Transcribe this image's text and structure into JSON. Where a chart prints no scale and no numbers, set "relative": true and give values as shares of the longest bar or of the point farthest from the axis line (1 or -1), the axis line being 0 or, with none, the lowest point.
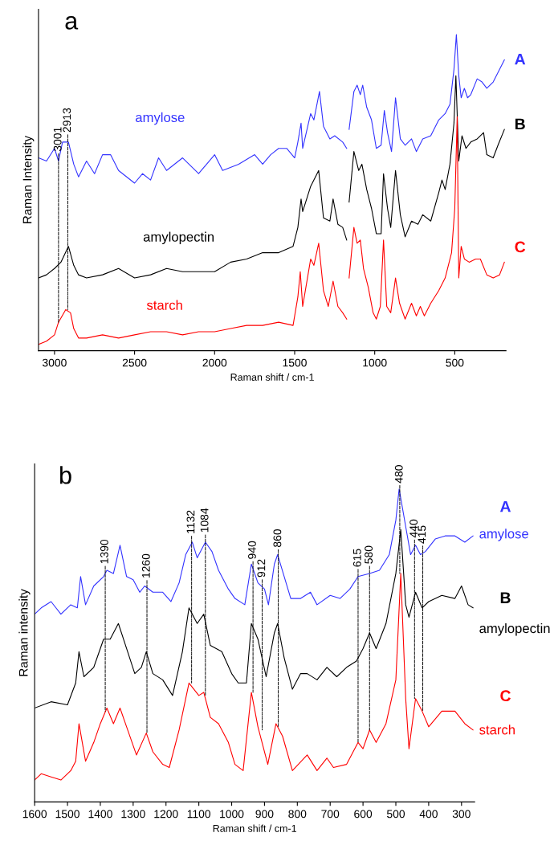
{
  "chart_data": [
    {
      "type": "line",
      "relative": true,
      "xlabel": "Raman shift / cm-1",
      "ylabel": "Raman Intensity",
      "xlim": [
        3100,
        180
      ],
      "xticks": [
        3000,
        2500,
        2000,
        1500,
        1000,
        500
      ],
      "grid": false,
      "legend": false,
      "series": [
        {
          "name": "amylose",
          "color": "#3333ff",
          "x": [
            3100,
            3050,
            3000,
            2975,
            2950,
            2913,
            2880,
            2850,
            2800,
            2750,
            2700,
            2650,
            2600,
            2500,
            2450,
            2400,
            2350,
            2300,
            2200,
            2100,
            2000,
            1950,
            1850,
            1750,
            1700,
            1650,
            1600,
            1550,
            1500,
            1480,
            1460,
            1450,
            1400,
            1380,
            1345,
            1320,
            1280,
            1250,
            1200,
            1175,
            1170,
            1160,
            1130,
            1110,
            1090,
            1075,
            1050,
            1020,
            990,
            960,
            940,
            920,
            895,
            870,
            840,
            810,
            770,
            740,
            700,
            650,
            600,
            560,
            530,
            505,
            490,
            475,
            460,
            440,
            420,
            400,
            360,
            330,
            300,
            260,
            230,
            190
          ],
          "values": [
            0.61,
            0.6,
            0.64,
            0.6,
            0.66,
            0.66,
            0.59,
            0.55,
            0.6,
            0.56,
            0.62,
            0.62,
            0.57,
            0.53,
            0.56,
            0.54,
            0.61,
            0.57,
            0.61,
            0.56,
            0.62,
            0.57,
            0.59,
            0.62,
            0.59,
            0.62,
            0.64,
            0.64,
            0.61,
            0.66,
            0.72,
            0.64,
            0.75,
            0.73,
            0.82,
            0.71,
            0.67,
            0.68,
            0.66,
            0.64,
            null,
            0.7,
            0.82,
            0.84,
            0.81,
            0.84,
            0.77,
            0.73,
            0.64,
            0.65,
            0.76,
            0.69,
            0.63,
            0.8,
            0.67,
            0.65,
            0.67,
            0.63,
            0.67,
            0.68,
            0.73,
            0.75,
            0.78,
            0.89,
            1.0,
            0.87,
            0.8,
            0.83,
            0.8,
            0.81,
            0.86,
            0.85,
            0.83,
            0.85,
            0.88,
            0.92
          ]
        },
        {
          "name": "amylopectin",
          "color": "#000000",
          "x": [
            3100,
            3050,
            3000,
            2960,
            2913,
            2880,
            2850,
            2800,
            2700,
            2600,
            2500,
            2400,
            2300,
            2200,
            2100,
            2000,
            1900,
            1800,
            1700,
            1600,
            1510,
            1480,
            1460,
            1450,
            1400,
            1350,
            1320,
            1280,
            1260,
            1230,
            1200,
            1175,
            1170,
            1160,
            1130,
            1100,
            1080,
            1050,
            1020,
            990,
            960,
            945,
            920,
            900,
            870,
            840,
            810,
            770,
            730,
            700,
            650,
            600,
            580,
            560,
            530,
            505,
            493,
            475,
            455,
            430,
            400,
            360,
            320,
            300,
            260,
            230,
            190
          ],
          "values": [
            0.23,
            0.24,
            0.26,
            0.28,
            0.33,
            0.27,
            0.24,
            0.23,
            0.24,
            0.26,
            0.23,
            0.24,
            0.26,
            0.25,
            0.25,
            0.25,
            0.28,
            0.29,
            0.31,
            0.31,
            0.33,
            0.39,
            0.48,
            0.44,
            0.52,
            0.57,
            0.42,
            0.41,
            0.48,
            0.4,
            0.39,
            0.35,
            null,
            0.47,
            0.63,
            0.57,
            0.59,
            0.51,
            0.45,
            0.37,
            0.37,
            0.56,
            0.45,
            0.39,
            0.57,
            0.43,
            0.36,
            0.41,
            0.4,
            0.43,
            0.41,
            0.5,
            0.54,
            0.51,
            0.59,
            0.72,
            0.87,
            0.6,
            0.68,
            0.64,
            0.66,
            0.67,
            0.69,
            0.62,
            0.61,
            0.65,
            0.7
          ]
        },
        {
          "name": "starch",
          "color": "#ff0000",
          "x": [
            3100,
            3050,
            3000,
            2975,
            2930,
            2900,
            2880,
            2850,
            2800,
            2700,
            2600,
            2500,
            2400,
            2300,
            2200,
            2100,
            2000,
            1900,
            1800,
            1700,
            1600,
            1510,
            1480,
            1465,
            1450,
            1400,
            1380,
            1350,
            1320,
            1290,
            1260,
            1230,
            1200,
            1175,
            1170,
            1160,
            1130,
            1110,
            1090,
            1070,
            1040,
            1010,
            990,
            965,
            945,
            925,
            900,
            870,
            845,
            810,
            770,
            740,
            715,
            690,
            650,
            600,
            560,
            520,
            500,
            485,
            475,
            460,
            440,
            410,
            370,
            340,
            300,
            260,
            220,
            190
          ],
          "values": [
            0.02,
            0.03,
            0.05,
            0.09,
            0.13,
            0.12,
            0.07,
            0.04,
            0.04,
            0.05,
            0.04,
            0.05,
            0.06,
            0.06,
            0.05,
            0.06,
            0.06,
            0.07,
            0.08,
            0.08,
            0.09,
            0.08,
            0.17,
            0.25,
            0.14,
            0.29,
            0.27,
            0.34,
            0.19,
            0.14,
            0.22,
            0.14,
            0.12,
            0.1,
            null,
            0.23,
            0.39,
            0.34,
            0.35,
            0.26,
            0.2,
            0.12,
            0.1,
            0.14,
            0.35,
            0.14,
            0.12,
            0.23,
            0.15,
            0.1,
            0.15,
            0.11,
            0.14,
            0.11,
            0.15,
            0.19,
            0.23,
            0.31,
            0.45,
            0.74,
            0.23,
            0.33,
            0.29,
            0.28,
            0.29,
            0.29,
            0.24,
            0.23,
            0.24,
            0.28
          ]
        }
      ],
      "annotations": [
        "a",
        "A",
        "B",
        "C",
        {
          "text": "3001",
          "x": 2975,
          "y": 0.09
        },
        {
          "text": "2913",
          "x": 2917,
          "y": 0.13
        }
      ]
    },
    {
      "type": "line",
      "relative": true,
      "xlabel": "Raman shift / cm-1",
      "ylabel": "Raman intensity",
      "xlim": [
        1600,
        260
      ],
      "xticks": [
        1600,
        1500,
        1400,
        1300,
        1200,
        1100,
        1000,
        900,
        800,
        700,
        600,
        500,
        400,
        300
      ],
      "grid": false,
      "legend": false,
      "series": [
        {
          "name": "amylose",
          "color": "#3333ff",
          "x": [
            1600,
            1580,
            1550,
            1520,
            1490,
            1470,
            1460,
            1445,
            1420,
            1390,
            1380,
            1360,
            1340,
            1320,
            1300,
            1280,
            1265,
            1240,
            1210,
            1185,
            1160,
            1140,
            1120,
            1105,
            1080,
            1060,
            1040,
            1010,
            990,
            960,
            940,
            920,
            900,
            888,
            870,
            860,
            840,
            820,
            790,
            760,
            740,
            700,
            670,
            640,
            615,
            580,
            550,
            520,
            500,
            490,
            470,
            455,
            440,
            425,
            410,
            380,
            350,
            320,
            290,
            265
          ],
          "values": [
            0.6,
            0.62,
            0.64,
            0.6,
            0.63,
            0.62,
            0.72,
            0.63,
            0.69,
            0.72,
            0.74,
            0.73,
            0.82,
            0.72,
            0.71,
            0.67,
            0.69,
            0.67,
            0.67,
            0.64,
            0.7,
            0.79,
            0.83,
            0.78,
            0.83,
            0.8,
            0.74,
            0.68,
            0.65,
            0.63,
            0.76,
            0.7,
            0.68,
            0.63,
            0.76,
            0.79,
            0.72,
            0.65,
            0.65,
            0.67,
            0.63,
            0.66,
            0.65,
            0.68,
            0.72,
            0.73,
            0.74,
            0.79,
            0.9,
            1.0,
            0.88,
            0.79,
            0.82,
            0.79,
            0.8,
            0.84,
            0.85,
            0.85,
            0.83,
            0.85
          ]
        },
        {
          "name": "amylopectin",
          "color": "#000000",
          "x": [
            1600,
            1550,
            1500,
            1475,
            1465,
            1450,
            1420,
            1390,
            1370,
            1345,
            1320,
            1295,
            1275,
            1260,
            1240,
            1210,
            1180,
            1150,
            1130,
            1105,
            1085,
            1065,
            1030,
            1000,
            980,
            955,
            940,
            920,
            895,
            870,
            860,
            840,
            815,
            790,
            770,
            740,
            710,
            680,
            650,
            620,
            600,
            580,
            560,
            530,
            500,
            485,
            470,
            460,
            440,
            420,
            400,
            360,
            320,
            300,
            280,
            265
          ],
          "values": [
            0.3,
            0.32,
            0.31,
            0.38,
            0.48,
            0.4,
            0.43,
            0.52,
            0.52,
            0.57,
            0.49,
            0.41,
            0.43,
            0.48,
            0.41,
            0.39,
            0.34,
            0.48,
            0.62,
            0.57,
            0.6,
            0.5,
            0.48,
            0.41,
            0.38,
            0.38,
            0.57,
            0.52,
            0.4,
            0.54,
            0.57,
            0.46,
            0.36,
            0.41,
            0.41,
            0.39,
            0.43,
            0.4,
            0.43,
            0.45,
            0.49,
            0.54,
            0.49,
            0.57,
            0.73,
            0.87,
            0.63,
            0.59,
            0.67,
            0.62,
            0.64,
            0.66,
            0.65,
            0.69,
            0.63,
            0.62
          ]
        },
        {
          "name": "starch",
          "color": "#ff0000",
          "x": [
            1600,
            1580,
            1550,
            1520,
            1490,
            1475,
            1465,
            1445,
            1420,
            1400,
            1380,
            1360,
            1340,
            1320,
            1290,
            1260,
            1240,
            1210,
            1190,
            1160,
            1130,
            1100,
            1085,
            1065,
            1040,
            1010,
            990,
            965,
            940,
            920,
            890,
            865,
            845,
            815,
            770,
            740,
            710,
            690,
            650,
            615,
            600,
            580,
            560,
            530,
            500,
            485,
            470,
            460,
            440,
            420,
            400,
            360,
            320,
            290,
            265
          ],
          "values": [
            0.07,
            0.09,
            0.08,
            0.07,
            0.1,
            0.13,
            0.25,
            0.13,
            0.19,
            0.25,
            0.3,
            0.25,
            0.3,
            0.24,
            0.15,
            0.22,
            0.16,
            0.12,
            0.11,
            0.23,
            0.38,
            0.34,
            0.35,
            0.27,
            0.25,
            0.19,
            0.12,
            0.1,
            0.35,
            0.24,
            0.12,
            0.25,
            0.21,
            0.1,
            0.15,
            0.1,
            0.14,
            0.11,
            0.12,
            0.19,
            0.17,
            0.23,
            0.19,
            0.25,
            0.39,
            0.73,
            0.33,
            0.17,
            0.33,
            0.29,
            0.24,
            0.29,
            0.29,
            0.25,
            0.23
          ]
        }
      ],
      "annotations": [
        "b",
        "A",
        "B",
        "C",
        {
          "text": "1390",
          "x": 1385,
          "y": 0.29
        },
        {
          "text": "1260",
          "x": 1258,
          "y": 0.22
        },
        {
          "text": "1132",
          "x": 1122,
          "y": 0.38
        },
        {
          "text": "1084",
          "x": 1080,
          "y": 0.34
        },
        {
          "text": "940",
          "x": 935,
          "y": 0.35
        },
        {
          "text": "912",
          "x": 907,
          "y": 0.23
        },
        {
          "text": "860",
          "x": 858,
          "y": 0.24
        },
        {
          "text": "615",
          "x": 615,
          "y": 0.19
        },
        {
          "text": "580",
          "x": 580,
          "y": 0.23
        },
        {
          "text": "480",
          "x": 488,
          "y": 0.73
        },
        {
          "text": "440",
          "x": 443,
          "y": 0.33
        },
        {
          "text": "415",
          "x": 418,
          "y": 0.29
        }
      ]
    }
  ]
}
